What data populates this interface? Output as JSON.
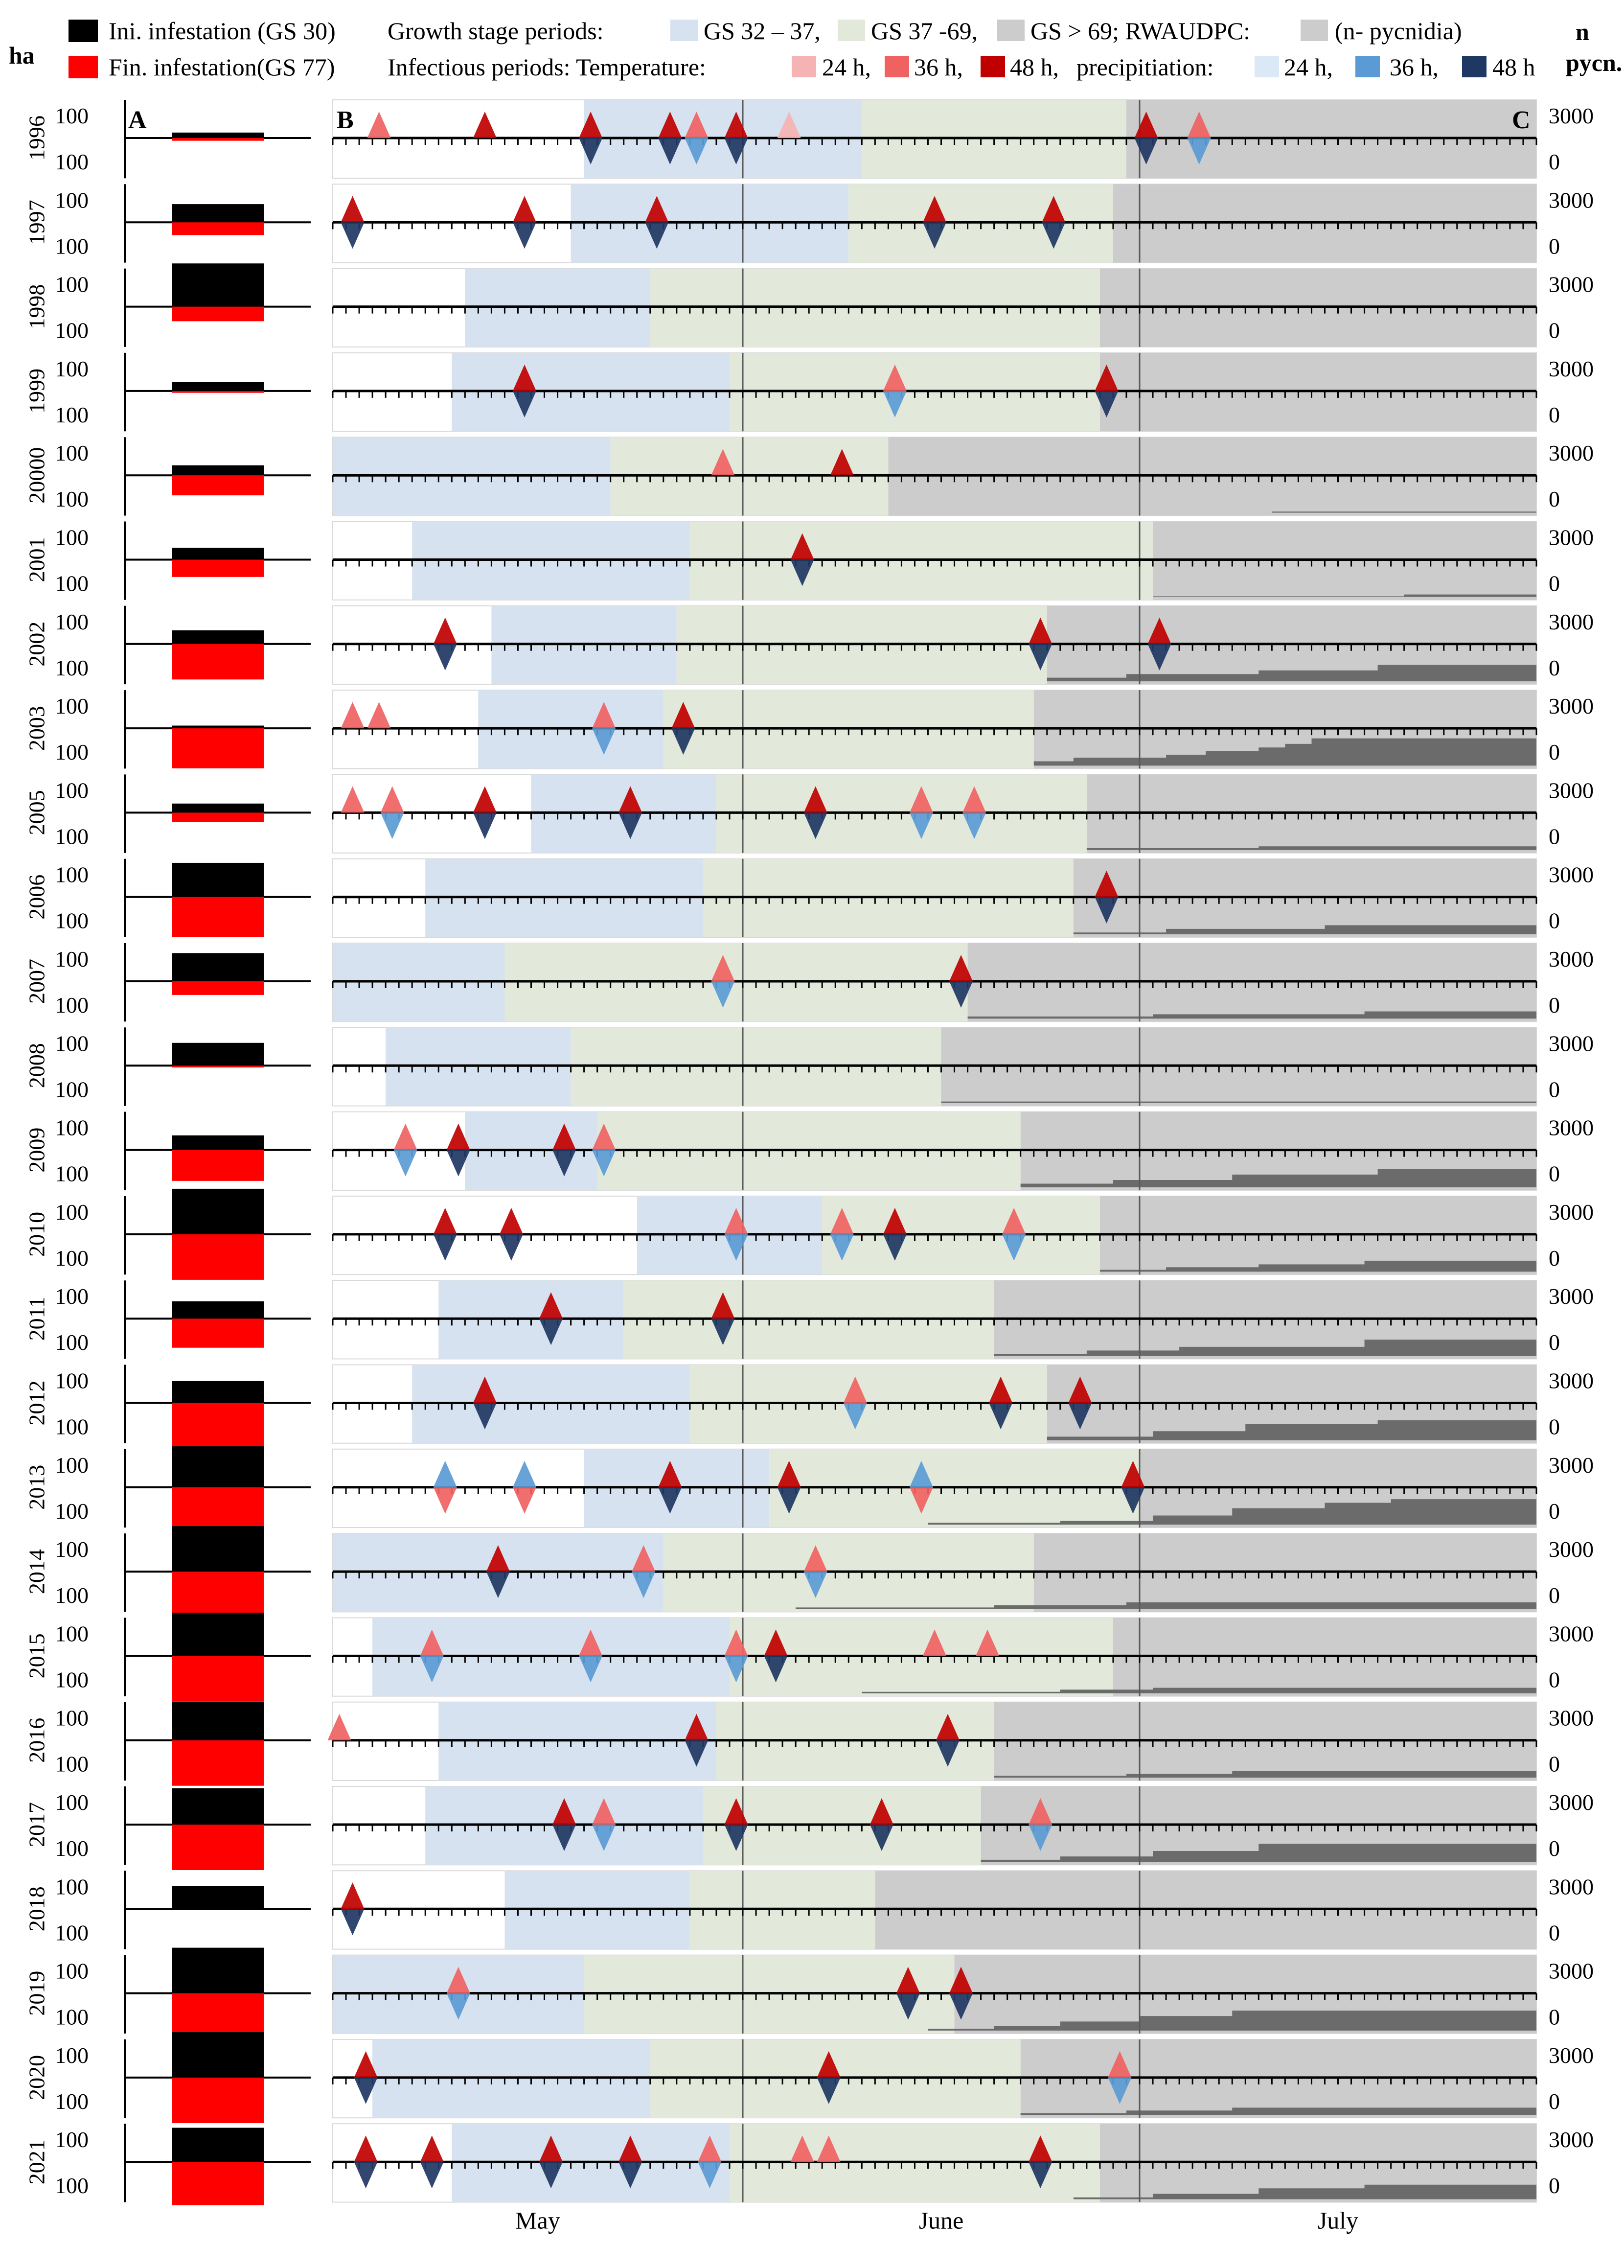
{
  "chart_data": {
    "type": "timeline-panels",
    "axis_label_left": "ha",
    "axis_label_right": [
      "n",
      "pycn."
    ],
    "panel_labels": [
      "A",
      "B",
      "C"
    ],
    "months": [
      "May",
      "June",
      "July"
    ],
    "x_domain_days": [
      0,
      91
    ],
    "y_tick_label_left": "100",
    "y_tick_labels_right": [
      "3000",
      "0"
    ],
    "legend": {
      "row1_prefix": "Ini. infestation (GS 30)",
      "row1_gs_label": "Growth stage periods:",
      "gs_items": [
        "GS 32 – 37,",
        "GS 37 -69,",
        "GS > 69; RWAUDPC:",
        "(n- pycnidia)"
      ],
      "row2_prefix": "Fin. infestation(GS 77)",
      "row2_inf_label": "Infectious periods: Temperature:",
      "temp_items": [
        "24 h,",
        "36 h,",
        "48 h,"
      ],
      "precip_label": "precipitiation:",
      "precip_items": [
        "24 h,",
        "36 h,",
        "48 h"
      ],
      "colors": {
        "ini": "#000000",
        "fin": "#ff0000",
        "gs32": "#d6e2ef",
        "gs37": "#e2e9da",
        "gs69": "#cccccc",
        "rwaudpc": "#6b6b6b",
        "t24": "#f6b3b3",
        "t36": "#f06262",
        "t48": "#c00000",
        "p24": "#dbe8f6",
        "p36": "#5b9bd5",
        "p48": "#1f3763"
      }
    },
    "years": [
      {
        "year": "1996",
        "ini": 0.12,
        "fin": 0.06,
        "gs1": 19,
        "gs2": 40,
        "gs3": 60,
        "rw": [],
        "ev": [
          [
            3.5,
            "t36",
            null
          ],
          [
            11.5,
            "t48",
            null
          ],
          [
            19.5,
            "t48",
            "p48"
          ],
          [
            25.5,
            "t48",
            "p48"
          ],
          [
            27.5,
            "t36",
            "p36"
          ],
          [
            30.5,
            "t48",
            "p48"
          ],
          [
            34.5,
            "t24",
            null
          ],
          [
            61.5,
            "t48",
            "p48"
          ],
          [
            65.5,
            "t36",
            "p36"
          ]
        ]
      },
      {
        "year": "1997",
        "ini": 0.4,
        "fin": 0.28,
        "gs1": 18,
        "gs2": 39,
        "gs3": 59,
        "rw": [],
        "ev": [
          [
            1.5,
            "t48",
            "p48"
          ],
          [
            14.5,
            "t48",
            "p48"
          ],
          [
            24.5,
            "t48",
            "p48"
          ],
          [
            45.5,
            "t48",
            "p48"
          ],
          [
            54.5,
            "t48",
            "p48"
          ]
        ]
      },
      {
        "year": "1998",
        "ini": 0.95,
        "fin": 0.32,
        "gs1": 10,
        "gs2": 24,
        "gs3": 58,
        "rw": [],
        "ev": []
      },
      {
        "year": "1999",
        "ini": 0.2,
        "fin": 0.04,
        "gs1": 9,
        "gs2": 30,
        "gs3": 58,
        "rw": [],
        "ev": [
          [
            14.5,
            "t48",
            "p48"
          ],
          [
            42.5,
            "t36",
            "p36"
          ],
          [
            58.5,
            "t48",
            "p48"
          ]
        ]
      },
      {
        "year": "20000",
        "ini": 0.22,
        "fin": 0.44,
        "gs1": 0,
        "gs2": 21,
        "gs3": 42,
        "rw": [
          [
            71,
            0.03
          ],
          [
            91,
            0.1
          ]
        ],
        "ev": [
          [
            29.5,
            "t36",
            null
          ],
          [
            38.5,
            "t48",
            null
          ]
        ]
      },
      {
        "year": "2001",
        "ini": 0.26,
        "fin": 0.38,
        "gs1": 6,
        "gs2": 27,
        "gs3": 62,
        "rw": [
          [
            62,
            0.02
          ],
          [
            81,
            0.07
          ],
          [
            91,
            0.12
          ]
        ],
        "ev": [
          [
            35.5,
            "t48",
            "p48"
          ]
        ]
      },
      {
        "year": "2002",
        "ini": 0.3,
        "fin": 0.78,
        "gs1": 12,
        "gs2": 26,
        "gs3": 54,
        "rw": [
          [
            54,
            0.1
          ],
          [
            60,
            0.2
          ],
          [
            70,
            0.3
          ],
          [
            79,
            0.45
          ],
          [
            91,
            0.55
          ]
        ],
        "ev": [
          [
            8.5,
            "t48",
            "p48"
          ],
          [
            53.5,
            "t48",
            "p48"
          ],
          [
            62.5,
            "t48",
            "p48"
          ]
        ]
      },
      {
        "year": "2003",
        "ini": 0.06,
        "fin": 0.88,
        "gs1": 11,
        "gs2": 25,
        "gs3": 53,
        "rw": [
          [
            53,
            0.12
          ],
          [
            56,
            0.22
          ],
          [
            63,
            0.3
          ],
          [
            66,
            0.4
          ],
          [
            70,
            0.5
          ],
          [
            72,
            0.6
          ],
          [
            74,
            0.75
          ],
          [
            91,
            0.9
          ]
        ],
        "ev": [
          [
            1.5,
            "t36",
            null
          ],
          [
            3.5,
            "t36",
            null
          ],
          [
            20.5,
            "t36",
            "p36"
          ],
          [
            26.5,
            "t48",
            "p48"
          ]
        ]
      },
      {
        "year": "2005",
        "ini": 0.2,
        "fin": 0.2,
        "gs1": 15,
        "gs2": 29,
        "gs3": 57,
        "rw": [
          [
            57,
            0.05
          ],
          [
            70,
            0.1
          ],
          [
            91,
            0.15
          ]
        ],
        "ev": [
          [
            1.5,
            "t36",
            null
          ],
          [
            4.5,
            "t36",
            "p36"
          ],
          [
            11.5,
            "t48",
            "p48"
          ],
          [
            22.5,
            "t48",
            "p48"
          ],
          [
            36.5,
            "t48",
            "p48"
          ],
          [
            44.5,
            "t36",
            "p36"
          ],
          [
            48.5,
            "t36",
            "p36"
          ]
        ]
      },
      {
        "year": "2006",
        "ini": 0.75,
        "fin": 0.88,
        "gs1": 7,
        "gs2": 28,
        "gs3": 56,
        "rw": [
          [
            56,
            0.05
          ],
          [
            63,
            0.15
          ],
          [
            75,
            0.25
          ],
          [
            91,
            0.35
          ]
        ],
        "ev": [
          [
            58.5,
            "t48",
            "p48"
          ]
        ]
      },
      {
        "year": "2007",
        "ini": 0.62,
        "fin": 0.3,
        "gs1": 0,
        "gs2": 13,
        "gs3": 48,
        "rw": [
          [
            48,
            0.06
          ],
          [
            62,
            0.12
          ],
          [
            78,
            0.2
          ],
          [
            91,
            0.22
          ]
        ],
        "ev": [
          [
            29.5,
            "t36",
            "p36"
          ],
          [
            47.5,
            "t48",
            "p48"
          ]
        ]
      },
      {
        "year": "2008",
        "ini": 0.5,
        "fin": 0.04,
        "gs1": 4,
        "gs2": 18,
        "gs3": 46,
        "rw": [
          [
            46,
            0.04
          ],
          [
            91,
            0.1
          ]
        ],
        "ev": []
      },
      {
        "year": "2009",
        "ini": 0.32,
        "fin": 0.68,
        "gs1": 10,
        "gs2": 20,
        "gs3": 52,
        "rw": [
          [
            52,
            0.1
          ],
          [
            59,
            0.2
          ],
          [
            68,
            0.35
          ],
          [
            79,
            0.5
          ],
          [
            91,
            0.55
          ]
        ],
        "ev": [
          [
            5.5,
            "t36",
            "p36"
          ],
          [
            9.5,
            "t48",
            "p48"
          ],
          [
            17.5,
            "t48",
            "p48"
          ],
          [
            20.5,
            "t36",
            "p36"
          ]
        ]
      },
      {
        "year": "2010",
        "ini": 1.0,
        "fin": 1.0,
        "gs1": 23,
        "gs2": 37,
        "gs3": 58,
        "rw": [
          [
            58,
            0.05
          ],
          [
            63,
            0.12
          ],
          [
            70,
            0.2
          ],
          [
            78,
            0.3
          ],
          [
            91,
            0.4
          ]
        ],
        "ev": [
          [
            8.5,
            "t48",
            "p48"
          ],
          [
            13.5,
            "t48",
            "p48"
          ],
          [
            30.5,
            "t36",
            "p36"
          ],
          [
            38.5,
            "t36",
            "p36"
          ],
          [
            42.5,
            "t48",
            "p48"
          ],
          [
            51.5,
            "t36",
            "p36"
          ]
        ]
      },
      {
        "year": "2011",
        "ini": 0.38,
        "fin": 0.64,
        "gs1": 8,
        "gs2": 22,
        "gs3": 50,
        "rw": [
          [
            50,
            0.06
          ],
          [
            57,
            0.15
          ],
          [
            64,
            0.25
          ],
          [
            78,
            0.45
          ],
          [
            91,
            0.5
          ]
        ],
        "ev": [
          [
            16.5,
            "t48",
            "p48"
          ],
          [
            29.5,
            "t48",
            "p48"
          ]
        ]
      },
      {
        "year": "2012",
        "ini": 0.48,
        "fin": 1.0,
        "gs1": 6,
        "gs2": 27,
        "gs3": 54,
        "rw": [
          [
            54,
            0.1
          ],
          [
            62,
            0.25
          ],
          [
            69,
            0.45
          ],
          [
            79,
            0.55
          ],
          [
            91,
            0.6
          ]
        ],
        "ev": [
          [
            11.5,
            "t48",
            "p48"
          ],
          [
            39.5,
            "t36",
            "p36"
          ],
          [
            50.5,
            "t48",
            "p48"
          ],
          [
            56.5,
            "t48",
            "p48"
          ]
        ]
      },
      {
        "year": "2013",
        "ini": 0.9,
        "fin": 1.0,
        "gs1": 19,
        "gs2": 33,
        "gs3": 61,
        "rw": [
          [
            45,
            0.05
          ],
          [
            55,
            0.1
          ],
          [
            62,
            0.25
          ],
          [
            68,
            0.45
          ],
          [
            75,
            0.6
          ],
          [
            80,
            0.7
          ],
          [
            91,
            0.75
          ]
        ],
        "ev": [
          [
            8.5,
            "p36",
            "t36"
          ],
          [
            14.5,
            "p36",
            "t36"
          ],
          [
            25.5,
            "t48",
            "p48"
          ],
          [
            34.5,
            "t48",
            "p48"
          ],
          [
            44.5,
            "p36",
            "t36"
          ],
          [
            60.5,
            "t48",
            "p48"
          ]
        ]
      },
      {
        "year": "2014",
        "ini": 1.0,
        "fin": 1.0,
        "gs1": 0,
        "gs2": 25,
        "gs3": 53,
        "rw": [
          [
            35,
            0.04
          ],
          [
            50,
            0.1
          ],
          [
            60,
            0.18
          ],
          [
            91,
            0.22
          ]
        ],
        "ev": [
          [
            12.5,
            "t48",
            "p48"
          ],
          [
            23.5,
            "t36",
            "p36"
          ],
          [
            36.5,
            "t36",
            "p36"
          ]
        ]
      },
      {
        "year": "2015",
        "ini": 0.95,
        "fin": 1.0,
        "gs1": 3,
        "gs2": 30,
        "gs3": 59,
        "rw": [
          [
            40,
            0.04
          ],
          [
            55,
            0.1
          ],
          [
            62,
            0.15
          ],
          [
            91,
            0.2
          ]
        ],
        "ev": [
          [
            7.5,
            "t36",
            "p36"
          ],
          [
            19.5,
            "t36",
            "p36"
          ],
          [
            30.5,
            "t36",
            "p36"
          ],
          [
            33.5,
            "t48",
            "p48"
          ],
          [
            45.5,
            "t36",
            null
          ],
          [
            49.5,
            "t36",
            null
          ]
        ]
      },
      {
        "year": "2016",
        "ini": 0.85,
        "fin": 1.0,
        "gs1": 8,
        "gs2": 29,
        "gs3": 50,
        "rw": [
          [
            50,
            0.05
          ],
          [
            60,
            0.1
          ],
          [
            68,
            0.18
          ],
          [
            91,
            0.22
          ]
        ],
        "ev": [
          [
            0.5,
            "t36",
            null
          ],
          [
            27.5,
            "t48",
            "p48"
          ],
          [
            46.5,
            "t48",
            "p48"
          ]
        ]
      },
      {
        "year": "2017",
        "ini": 0.8,
        "fin": 1.0,
        "gs1": 7,
        "gs2": 28,
        "gs3": 49,
        "rw": [
          [
            49,
            0.06
          ],
          [
            55,
            0.15
          ],
          [
            62,
            0.3
          ],
          [
            70,
            0.5
          ],
          [
            91,
            0.55
          ]
        ],
        "ev": [
          [
            17.5,
            "t48",
            "p48"
          ],
          [
            20.5,
            "t36",
            "p36"
          ],
          [
            30.5,
            "t48",
            "p48"
          ],
          [
            41.5,
            "t48",
            "p48"
          ],
          [
            53.5,
            "t36",
            "p36"
          ]
        ]
      },
      {
        "year": "2018",
        "ini": 0.5,
        "fin": 0.0,
        "gs1": 13,
        "gs2": 27,
        "gs3": 41,
        "rw": [],
        "ev": [
          [
            1.5,
            "t48",
            "p48"
          ]
        ]
      },
      {
        "year": "2019",
        "ini": 1.0,
        "fin": 1.0,
        "gs1": 0,
        "gs2": 19,
        "gs3": 47,
        "rw": [
          [
            45,
            0.05
          ],
          [
            50,
            0.12
          ],
          [
            55,
            0.25
          ],
          [
            61,
            0.4
          ],
          [
            68,
            0.55
          ],
          [
            91,
            0.6
          ]
        ],
        "ev": [
          [
            9.5,
            "t36",
            "p36"
          ],
          [
            43.5,
            "t48",
            "p48"
          ],
          [
            47.5,
            "t48",
            "p48"
          ]
        ]
      },
      {
        "year": "2020",
        "ini": 1.0,
        "fin": 1.0,
        "gs1": 3,
        "gs2": 24,
        "gs3": 52,
        "rw": [
          [
            52,
            0.05
          ],
          [
            60,
            0.12
          ],
          [
            68,
            0.2
          ],
          [
            91,
            0.25
          ]
        ],
        "ev": [
          [
            2.5,
            "t48",
            "p48"
          ],
          [
            37.5,
            "t48",
            "p48"
          ],
          [
            59.5,
            "t36",
            "p36"
          ]
        ]
      },
      {
        "year": "2021",
        "ini": 0.75,
        "fin": 0.95,
        "gs1": 9,
        "gs2": 30,
        "gs3": 58,
        "rw": [
          [
            56,
            0.05
          ],
          [
            62,
            0.15
          ],
          [
            70,
            0.3
          ],
          [
            78,
            0.4
          ],
          [
            91,
            0.45
          ]
        ],
        "ev": [
          [
            2.5,
            "t48",
            "p48"
          ],
          [
            7.5,
            "t48",
            "p48"
          ],
          [
            16.5,
            "t48",
            "p48"
          ],
          [
            22.5,
            "t48",
            "p48"
          ],
          [
            28.5,
            "t36",
            "p36"
          ],
          [
            35.5,
            "t36",
            null
          ],
          [
            37.5,
            "t36",
            null
          ],
          [
            53.5,
            "t48",
            "p48"
          ]
        ]
      }
    ]
  }
}
